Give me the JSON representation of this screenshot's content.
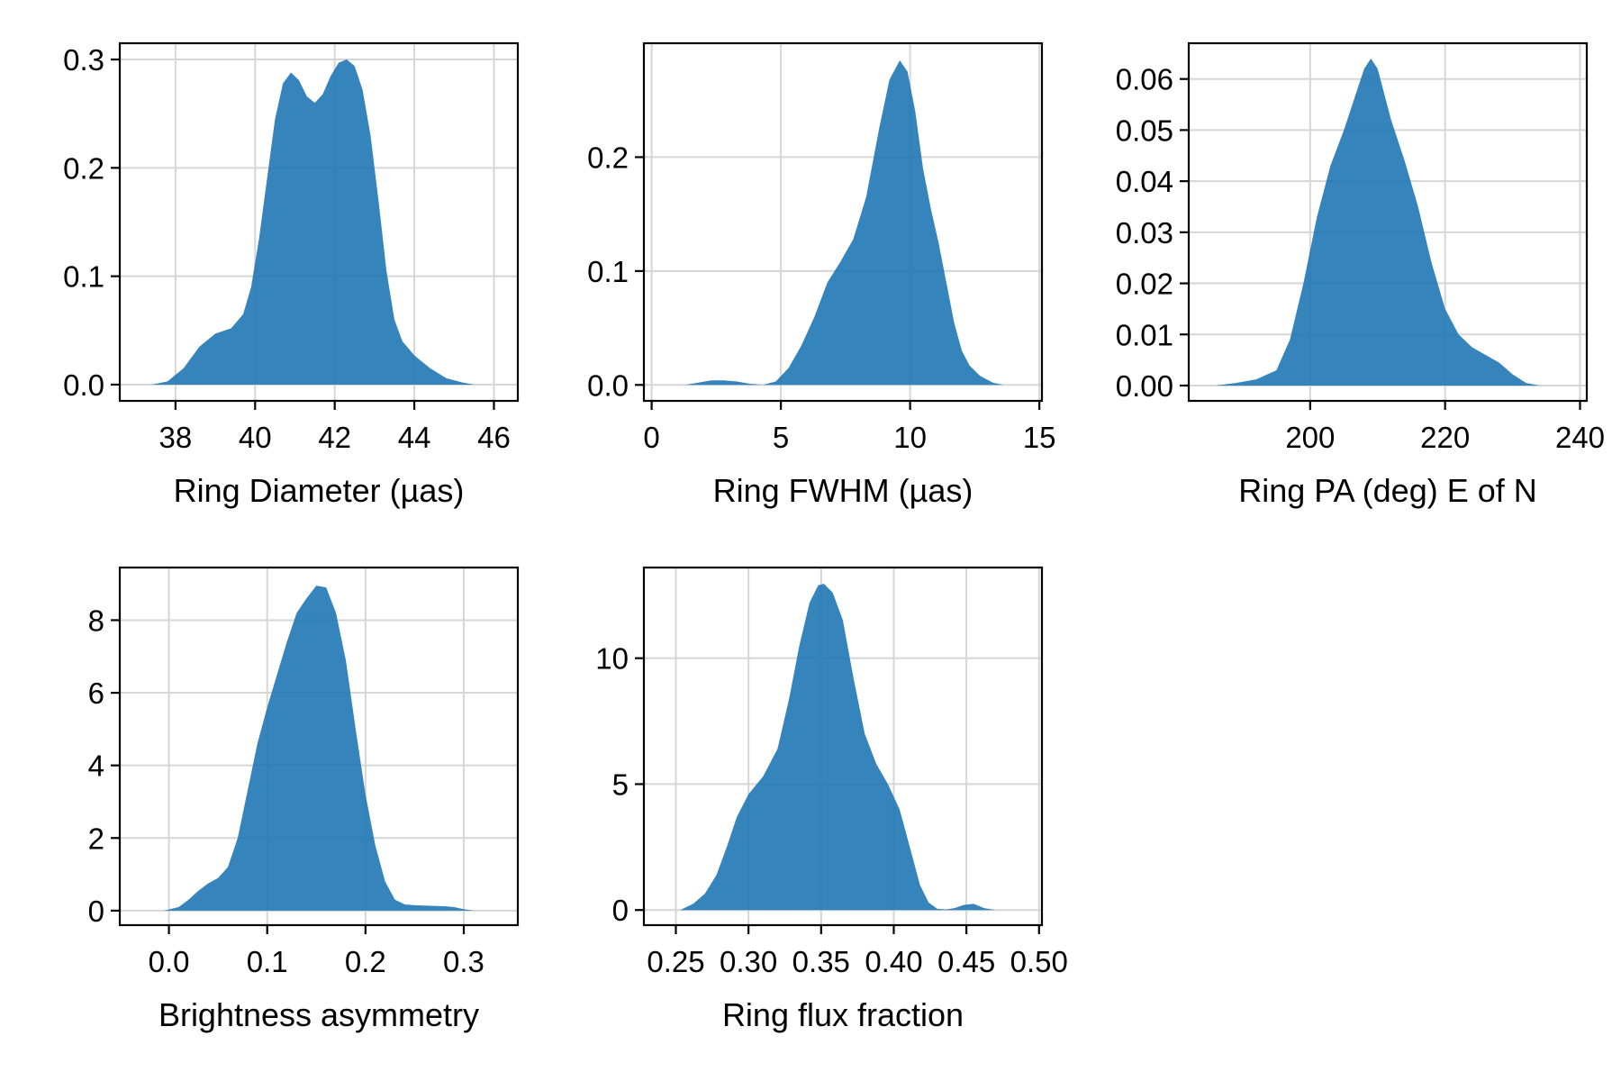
{
  "chart_data": [
    {
      "type": "area",
      "xlabel": "Ring Diameter (µas)",
      "ylabel": "",
      "xlim": [
        36.6,
        46.6
      ],
      "ylim": [
        -0.015,
        0.315
      ],
      "xticks": [
        38,
        40,
        42,
        44,
        46
      ],
      "xtick_labels": [
        "38",
        "40",
        "42",
        "44",
        "46"
      ],
      "yticks": [
        0.0,
        0.1,
        0.2,
        0.3
      ],
      "ytick_labels": [
        "0.0",
        "0.1",
        "0.2",
        "0.3"
      ],
      "grid": true,
      "color": "#1f77b4",
      "x": [
        37.4,
        37.8,
        38.2,
        38.6,
        39.0,
        39.4,
        39.7,
        39.9,
        40.1,
        40.3,
        40.5,
        40.7,
        40.9,
        41.1,
        41.3,
        41.5,
        41.7,
        41.9,
        42.1,
        42.3,
        42.5,
        42.7,
        42.9,
        43.1,
        43.3,
        43.5,
        43.7,
        44.0,
        44.4,
        44.8,
        45.2,
        45.5
      ],
      "y": [
        0.0,
        0.003,
        0.015,
        0.035,
        0.047,
        0.052,
        0.065,
        0.09,
        0.135,
        0.19,
        0.245,
        0.278,
        0.288,
        0.281,
        0.266,
        0.26,
        0.268,
        0.285,
        0.297,
        0.3,
        0.294,
        0.272,
        0.23,
        0.17,
        0.105,
        0.06,
        0.04,
        0.027,
        0.015,
        0.006,
        0.002,
        0.0
      ]
    },
    {
      "type": "area",
      "xlabel": "Ring FWHM (µas)",
      "ylabel": "",
      "xlim": [
        -0.3,
        15.1
      ],
      "ylim": [
        -0.014,
        0.3
      ],
      "xticks": [
        0,
        5,
        10,
        15
      ],
      "xtick_labels": [
        "0",
        "5",
        "10",
        "15"
      ],
      "yticks": [
        0.0,
        0.1,
        0.2
      ],
      "ytick_labels": [
        "0.0",
        "0.1",
        "0.2"
      ],
      "grid": true,
      "color": "#1f77b4",
      "x": [
        1.3,
        1.8,
        2.3,
        2.8,
        3.3,
        3.8,
        4.3,
        4.8,
        5.3,
        5.8,
        6.3,
        6.8,
        7.3,
        7.8,
        8.3,
        8.8,
        9.2,
        9.6,
        9.9,
        10.2,
        10.5,
        10.8,
        11.1,
        11.4,
        11.7,
        12.0,
        12.3,
        12.7,
        13.2,
        13.6
      ],
      "y": [
        0.0,
        0.002,
        0.004,
        0.004,
        0.003,
        0.001,
        0.0,
        0.003,
        0.015,
        0.035,
        0.06,
        0.09,
        0.108,
        0.128,
        0.165,
        0.225,
        0.268,
        0.285,
        0.275,
        0.24,
        0.19,
        0.155,
        0.125,
        0.09,
        0.055,
        0.03,
        0.017,
        0.008,
        0.002,
        0.0
      ]
    },
    {
      "type": "area",
      "xlabel": "Ring PA (deg) E of N",
      "ylabel": "",
      "xlim": [
        182,
        241
      ],
      "ylim": [
        -0.003,
        0.067
      ],
      "xticks": [
        200,
        220,
        240
      ],
      "xtick_labels": [
        "200",
        "220",
        "240"
      ],
      "yticks": [
        0.0,
        0.01,
        0.02,
        0.03,
        0.04,
        0.05,
        0.06
      ],
      "ytick_labels": [
        "0.00",
        "0.01",
        "0.02",
        "0.03",
        "0.04",
        "0.05",
        "0.06"
      ],
      "grid": true,
      "color": "#1f77b4",
      "x": [
        186,
        189,
        192,
        195,
        197,
        199,
        201,
        203,
        205,
        207,
        208,
        209,
        210,
        212,
        214,
        216,
        218,
        220,
        222,
        224,
        226,
        228,
        230,
        232,
        234
      ],
      "y": [
        0.0,
        0.0005,
        0.0012,
        0.003,
        0.009,
        0.02,
        0.033,
        0.043,
        0.05,
        0.058,
        0.062,
        0.064,
        0.062,
        0.052,
        0.044,
        0.035,
        0.024,
        0.015,
        0.01,
        0.0075,
        0.006,
        0.0045,
        0.0022,
        0.0005,
        0.0
      ]
    },
    {
      "type": "area",
      "xlabel": "Brightness asymmetry",
      "ylabel": "",
      "xlim": [
        -0.05,
        0.355
      ],
      "ylim": [
        -0.4,
        9.45
      ],
      "xticks": [
        0.0,
        0.1,
        0.2,
        0.3
      ],
      "xtick_labels": [
        "0.0",
        "0.1",
        "0.2",
        "0.3"
      ],
      "yticks": [
        0,
        2,
        4,
        6,
        8
      ],
      "ytick_labels": [
        "0",
        "2",
        "4",
        "6",
        "8"
      ],
      "grid": true,
      "color": "#1f77b4",
      "x": [
        -0.005,
        0.01,
        0.02,
        0.03,
        0.04,
        0.05,
        0.06,
        0.07,
        0.08,
        0.09,
        0.1,
        0.11,
        0.12,
        0.13,
        0.14,
        0.15,
        0.16,
        0.17,
        0.18,
        0.19,
        0.2,
        0.21,
        0.22,
        0.23,
        0.24,
        0.25,
        0.26,
        0.27,
        0.28,
        0.29,
        0.3,
        0.31
      ],
      "y": [
        0.0,
        0.1,
        0.3,
        0.55,
        0.75,
        0.9,
        1.2,
        2.0,
        3.3,
        4.6,
        5.6,
        6.5,
        7.4,
        8.2,
        8.6,
        8.95,
        8.9,
        8.2,
        6.9,
        5.0,
        3.2,
        1.8,
        0.8,
        0.3,
        0.17,
        0.15,
        0.14,
        0.13,
        0.12,
        0.1,
        0.04,
        0.0
      ]
    },
    {
      "type": "area",
      "xlabel": "Ring flux fraction",
      "ylabel": "",
      "xlim": [
        0.228,
        0.502
      ],
      "ylim": [
        -0.6,
        13.6
      ],
      "xticks": [
        0.25,
        0.3,
        0.35,
        0.4,
        0.45,
        0.5
      ],
      "xtick_labels": [
        "0.25",
        "0.30",
        "0.35",
        "0.40",
        "0.45",
        "0.50"
      ],
      "yticks": [
        0,
        5,
        10
      ],
      "ytick_labels": [
        "0",
        "5",
        "10"
      ],
      "grid": true,
      "color": "#1f77b4",
      "x": [
        0.253,
        0.262,
        0.27,
        0.278,
        0.285,
        0.292,
        0.3,
        0.31,
        0.32,
        0.328,
        0.335,
        0.342,
        0.348,
        0.352,
        0.358,
        0.365,
        0.372,
        0.38,
        0.388,
        0.396,
        0.404,
        0.412,
        0.418,
        0.424,
        0.43,
        0.436,
        0.442,
        0.448,
        0.455,
        0.462,
        0.47
      ],
      "y": [
        0.0,
        0.25,
        0.65,
        1.4,
        2.5,
        3.7,
        4.6,
        5.3,
        6.4,
        8.4,
        10.5,
        12.2,
        12.9,
        12.95,
        12.6,
        11.5,
        9.3,
        7.0,
        5.8,
        5.0,
        4.0,
        2.3,
        1.0,
        0.3,
        0.05,
        0.02,
        0.08,
        0.2,
        0.25,
        0.08,
        0.0
      ]
    }
  ]
}
